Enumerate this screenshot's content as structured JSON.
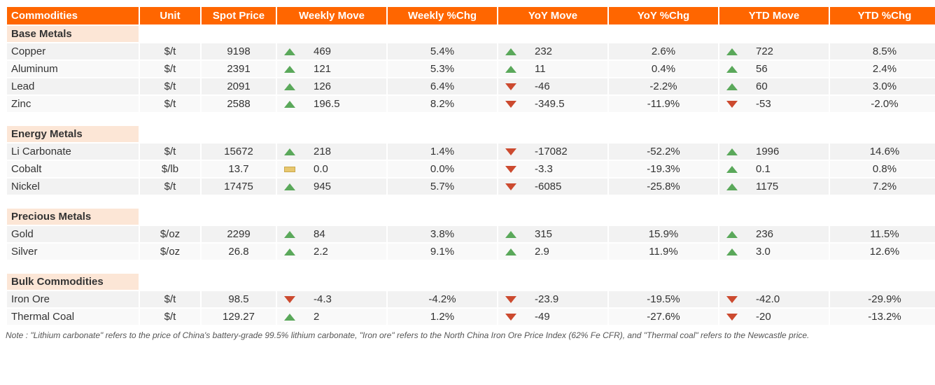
{
  "colors": {
    "header_bg": "#ff6600",
    "header_fg": "#ffffff",
    "row_bg": "#f2f2f2",
    "row_alt_bg": "#f9f9f9",
    "group_bg": "#fce6d6",
    "up_color": "#5aa85a",
    "down_color": "#cc4a2f",
    "flat_color": "#e8c76f",
    "border_color": "#ffffff"
  },
  "columns": [
    {
      "key": "name",
      "label": "Commodities",
      "width": 190
    },
    {
      "key": "unit",
      "label": "Unit",
      "width": 88
    },
    {
      "key": "spot",
      "label": "Spot Price",
      "width": 108
    },
    {
      "key": "wmove",
      "label": "Weekly Move",
      "width": 158
    },
    {
      "key": "wchg",
      "label": "Weekly %Chg",
      "width": 158
    },
    {
      "key": "ymove",
      "label": "YoY Move",
      "width": 158
    },
    {
      "key": "ychg",
      "label": "YoY  %Chg",
      "width": 158
    },
    {
      "key": "tmove",
      "label": "YTD Move",
      "width": 158
    },
    {
      "key": "tchg",
      "label": "YTD %Chg",
      "width": 158
    }
  ],
  "groups": [
    {
      "label": "Base Metals",
      "rows": [
        {
          "name": "Copper",
          "unit": "$/t",
          "spot": "9198",
          "wmove": "469",
          "wdir": "up",
          "wchg": "5.4%",
          "ymove": "232",
          "ydir": "up",
          "ychg": "2.6%",
          "tmove": "722",
          "tdir": "up",
          "tchg": "8.5%"
        },
        {
          "name": "Aluminum",
          "unit": "$/t",
          "spot": "2391",
          "wmove": "121",
          "wdir": "up",
          "wchg": "5.3%",
          "ymove": "11",
          "ydir": "up",
          "ychg": "0.4%",
          "tmove": "56",
          "tdir": "up",
          "tchg": "2.4%"
        },
        {
          "name": "Lead",
          "unit": "$/t",
          "spot": "2091",
          "wmove": "126",
          "wdir": "up",
          "wchg": "6.4%",
          "ymove": "-46",
          "ydir": "down",
          "ychg": "-2.2%",
          "tmove": "60",
          "tdir": "up",
          "tchg": "3.0%"
        },
        {
          "name": "Zinc",
          "unit": "$/t",
          "spot": "2588",
          "wmove": "196.5",
          "wdir": "up",
          "wchg": "8.2%",
          "ymove": "-349.5",
          "ydir": "down",
          "ychg": "-11.9%",
          "tmove": "-53",
          "tdir": "down",
          "tchg": "-2.0%"
        }
      ]
    },
    {
      "label": "Energy Metals",
      "rows": [
        {
          "name": "Li Carbonate",
          "unit": "$/t",
          "spot": "15672",
          "wmove": "218",
          "wdir": "up",
          "wchg": "1.4%",
          "ymove": "-17082",
          "ydir": "down",
          "ychg": "-52.2%",
          "tmove": "1996",
          "tdir": "up",
          "tchg": "14.6%"
        },
        {
          "name": "Cobalt",
          "unit": "$/lb",
          "spot": "13.7",
          "wmove": "0.0",
          "wdir": "flat",
          "wchg": "0.0%",
          "ymove": "-3.3",
          "ydir": "down",
          "ychg": "-19.3%",
          "tmove": "0.1",
          "tdir": "up",
          "tchg": "0.8%"
        },
        {
          "name": "Nickel",
          "unit": "$/t",
          "spot": "17475",
          "wmove": "945",
          "wdir": "up",
          "wchg": "5.7%",
          "ymove": "-6085",
          "ydir": "down",
          "ychg": "-25.8%",
          "tmove": "1175",
          "tdir": "up",
          "tchg": "7.2%"
        }
      ]
    },
    {
      "label": "Precious Metals",
      "rows": [
        {
          "name": "Gold",
          "unit": "$/oz",
          "spot": "2299",
          "wmove": "84",
          "wdir": "up",
          "wchg": "3.8%",
          "ymove": "315",
          "ydir": "up",
          "ychg": "15.9%",
          "tmove": "236",
          "tdir": "up",
          "tchg": "11.5%"
        },
        {
          "name": "Silver",
          "unit": "$/oz",
          "spot": "26.8",
          "wmove": "2.2",
          "wdir": "up",
          "wchg": "9.1%",
          "ymove": "2.9",
          "ydir": "up",
          "ychg": "11.9%",
          "tmove": "3.0",
          "tdir": "up",
          "tchg": "12.6%"
        }
      ]
    },
    {
      "label": "Bulk Commodities",
      "rows": [
        {
          "name": "Iron Ore",
          "unit": "$/t",
          "spot": "98.5",
          "wmove": "-4.3",
          "wdir": "down",
          "wchg": "-4.2%",
          "ymove": "-23.9",
          "ydir": "down",
          "ychg": "-19.5%",
          "tmove": "-42.0",
          "tdir": "down",
          "tchg": "-29.9%"
        },
        {
          "name": "Thermal Coal",
          "unit": "$/t",
          "spot": "129.27",
          "wmove": "2",
          "wdir": "up",
          "wchg": "1.2%",
          "ymove": "-49",
          "ydir": "down",
          "ychg": "-27.6%",
          "tmove": "-20",
          "tdir": "down",
          "tchg": "-13.2%"
        }
      ]
    }
  ],
  "footnote": "Note :   \"Lithium carbonate\" refers to the price of China's battery-grade 99.5% lithium carbonate, \"Iron ore\" refers to the North China Iron Ore Price Index (62% Fe CFR), and \"Thermal coal\" refers to the Newcastle price."
}
